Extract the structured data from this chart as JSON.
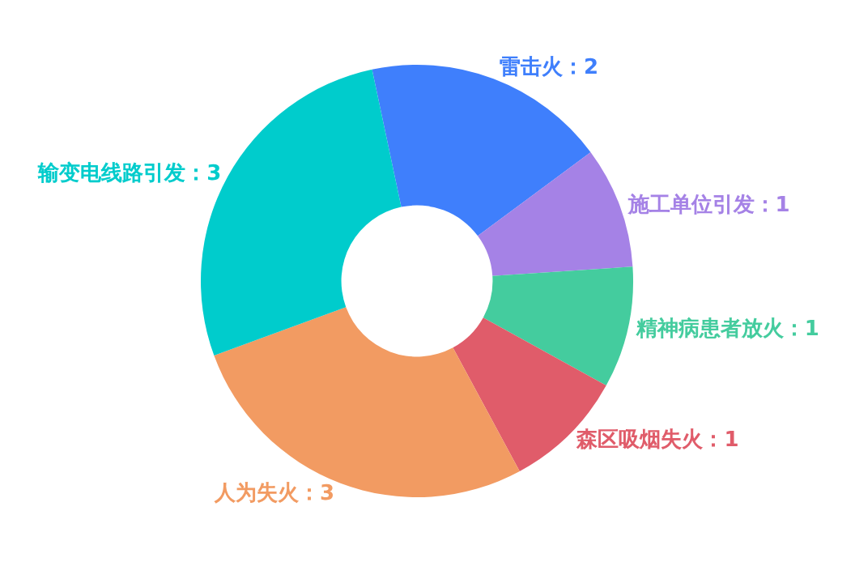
{
  "chart_data": {
    "type": "donut",
    "categories": [
      "雷击火",
      "施工单位引发",
      "精神病患者放火",
      "森区吸烟失火",
      "人为失火",
      "输变电线路引发"
    ],
    "values": [
      2,
      1,
      1,
      1,
      3,
      3
    ],
    "colors": [
      "#3f7ffc",
      "#a582e6",
      "#44cc9e",
      "#e05c6a",
      "#f29b62",
      "#00cccc"
    ],
    "value_labels": [
      "：2",
      "：1",
      "：1",
      "：1",
      "：3",
      "：3"
    ],
    "legend": false
  }
}
